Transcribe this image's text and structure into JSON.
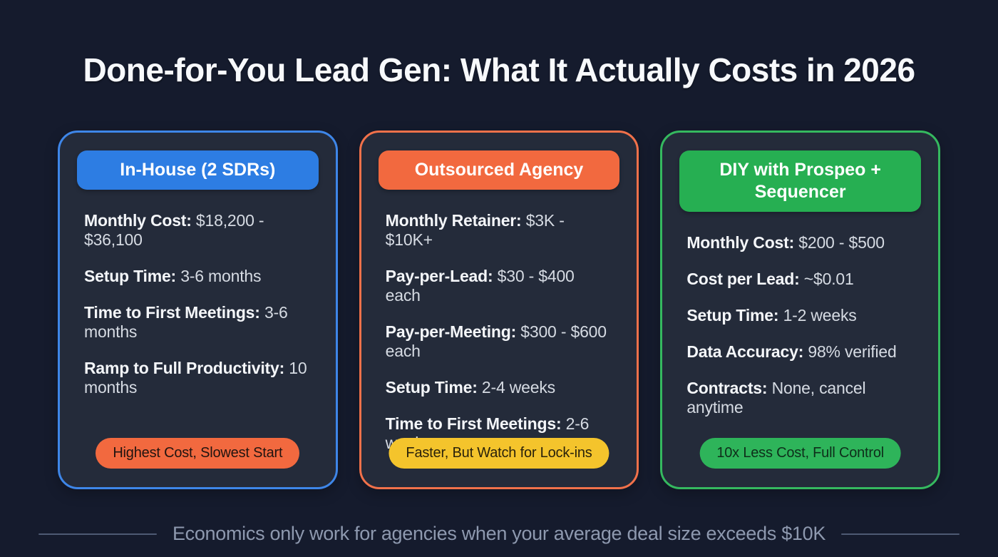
{
  "page": {
    "title": "Done-for-You Lead Gen: What It Actually Costs in 2026",
    "footer_note": "Economics only work for agencies when your average deal size exceeds $10K"
  },
  "colors": {
    "background": "#151b2d",
    "card_background": "#242b3a",
    "blue_accent": "#3e86e8",
    "blue_header": "#2d7de3",
    "orange_accent": "#f1714a",
    "orange_header": "#f2693f",
    "green_accent": "#35b95f",
    "green_header": "#26af52",
    "yellow_badge": "#f4c42c"
  },
  "cards": [
    {
      "id": "in-house",
      "accent": "#3e86e8",
      "header": {
        "label": "In-House (2 SDRs)",
        "bg": "#2d7de3"
      },
      "items": [
        {
          "label": "Monthly Cost:",
          "value": "$18,200 - $36,100"
        },
        {
          "label": "Setup Time:",
          "value": "3-6 months"
        },
        {
          "label": "Time to First Meetings:",
          "value": "3-6 months"
        },
        {
          "label": "Ramp to Full Productivity:",
          "value": "10 months"
        }
      ],
      "badge": {
        "label": "Highest Cost, Slowest Start",
        "bg": "#f2693f",
        "text_color": "#201410"
      }
    },
    {
      "id": "outsourced-agency",
      "accent": "#f1714a",
      "header": {
        "label": "Outsourced Agency",
        "bg": "#f2693f"
      },
      "items": [
        {
          "label": "Monthly Retainer:",
          "value": "$3K - $10K+"
        },
        {
          "label": "Pay-per-Lead:",
          "value": "$30 - $400 each"
        },
        {
          "label": "Pay-per-Meeting:",
          "value": "$300 - $600 each"
        },
        {
          "label": "Setup Time:",
          "value": "2-4 weeks"
        },
        {
          "label": "Time to First Meetings:",
          "value": "2-6 weeks"
        }
      ],
      "badge": {
        "label": "Faster, But Watch for Lock-ins",
        "bg": "#f4c42c",
        "text_color": "#2a220b"
      }
    },
    {
      "id": "diy-prospeo",
      "accent": "#35b95f",
      "header": {
        "label": "DIY with Prospeo + Sequencer",
        "bg": "#26af52"
      },
      "items": [
        {
          "label": "Monthly Cost:",
          "value": "$200 - $500"
        },
        {
          "label": "Cost per Lead:",
          "value": "~$0.01"
        },
        {
          "label": "Setup Time:",
          "value": "1-2 weeks"
        },
        {
          "label": "Data Accuracy:",
          "value": "98% verified"
        },
        {
          "label": "Contracts:",
          "value": "None, cancel anytime"
        }
      ],
      "badge": {
        "label": "10x Less Cost, Full Control",
        "bg": "#2eb45a",
        "text_color": "#0e2e1a"
      }
    }
  ]
}
